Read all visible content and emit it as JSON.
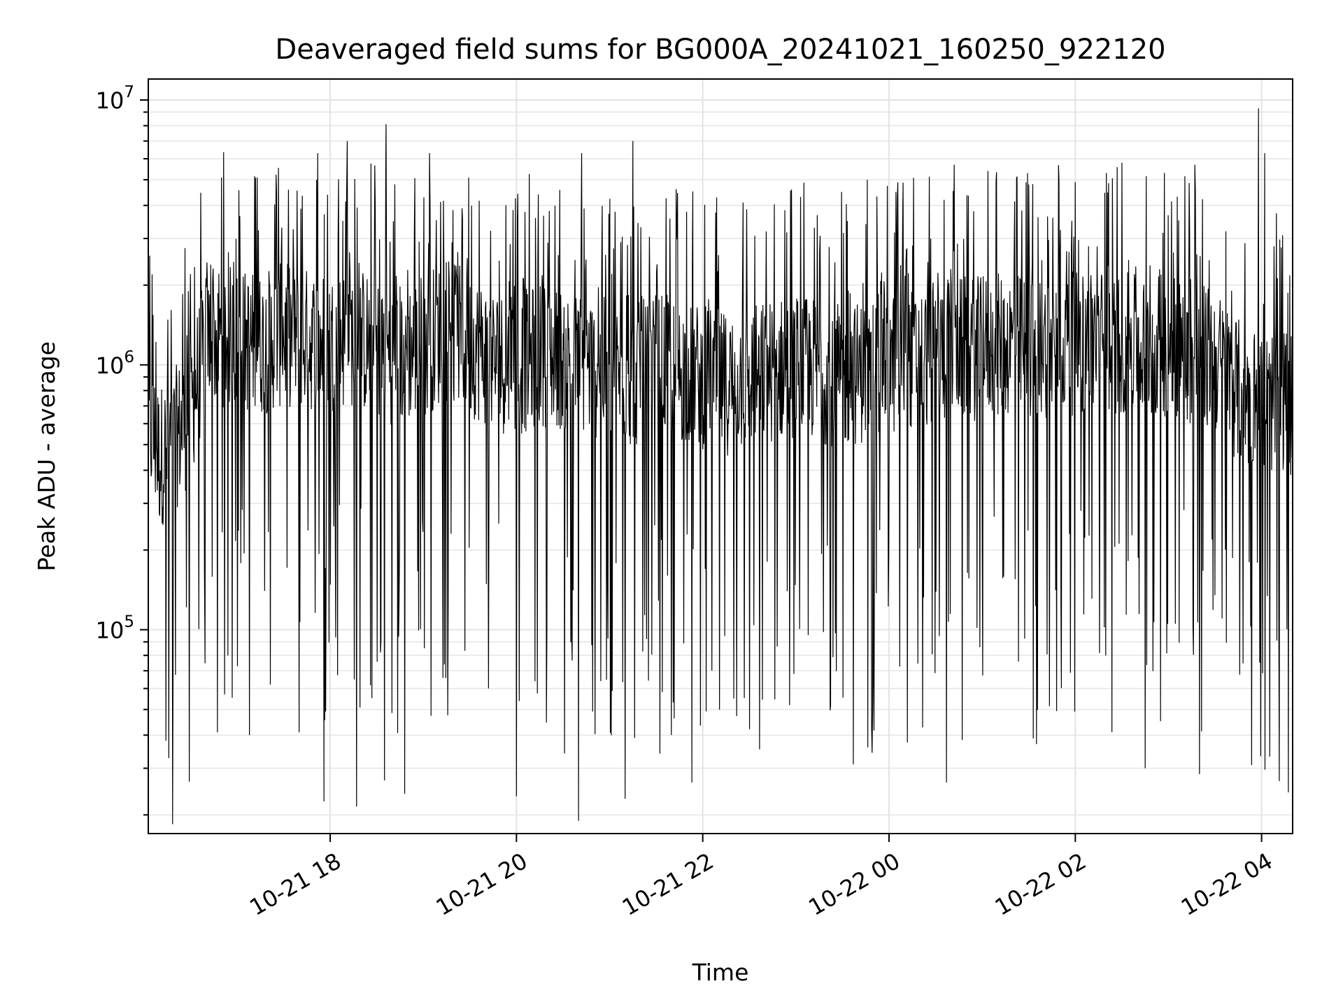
{
  "chart_data": {
    "type": "line",
    "title": "Deaveraged field sums for BG000A_20241021_160250_922120",
    "xlabel": "Time",
    "ylabel": "Peak ADU - average",
    "yscale": "log",
    "ylim": [
      17000,
      12000000
    ],
    "xlim": [
      "2024-10-21 16:02:50",
      "2024-10-22 04:20:00"
    ],
    "x_ticks": [
      "10-21 18",
      "10-21 20",
      "10-21 22",
      "10-22 00",
      "10-22 02",
      "10-22 04"
    ],
    "y_ticks": [
      {
        "base": "10",
        "exp": "5",
        "value": 100000
      },
      {
        "base": "10",
        "exp": "6",
        "value": 1000000
      },
      {
        "base": "10",
        "exp": "7",
        "value": 10000000
      }
    ],
    "grid": true,
    "line_color": "#000000",
    "series": [
      {
        "points": [
          [
            "2024-10-21 16:03",
            600000
          ],
          [
            "2024-10-21 16:10",
            450000
          ],
          [
            "2024-10-21 16:20",
            520000
          ],
          [
            "2024-10-21 16:30",
            680000
          ],
          [
            "2024-10-21 16:40",
            1200000
          ],
          [
            "2024-10-21 16:50",
            1300000
          ],
          [
            "2024-10-21 17:00",
            1250000
          ],
          [
            "2024-10-21 17:15",
            1200000
          ],
          [
            "2024-10-21 17:30",
            1300000
          ],
          [
            "2024-10-21 17:45",
            1250000
          ],
          [
            "2024-10-21 18:00",
            1200000
          ],
          [
            "2024-10-21 18:15",
            1300000
          ],
          [
            "2024-10-21 18:30",
            1150000
          ],
          [
            "2024-10-21 18:45",
            1100000
          ],
          [
            "2024-10-21 19:00",
            1200000
          ],
          [
            "2024-10-21 19:15",
            1350000
          ],
          [
            "2024-10-21 19:30",
            1200000
          ],
          [
            "2024-10-21 19:45",
            1050000
          ],
          [
            "2024-10-21 20:00",
            1000000
          ],
          [
            "2024-10-21 20:15",
            1100000
          ],
          [
            "2024-10-21 20:30",
            1050000
          ],
          [
            "2024-10-21 20:45",
            1000000
          ],
          [
            "2024-10-21 21:00",
            950000
          ],
          [
            "2024-10-21 21:15",
            900000
          ],
          [
            "2024-10-21 21:30",
            1000000
          ],
          [
            "2024-10-21 21:45",
            950000
          ],
          [
            "2024-10-21 22:00",
            900000
          ],
          [
            "2024-10-21 22:15",
            850000
          ],
          [
            "2024-10-21 22:30",
            900000
          ],
          [
            "2024-10-21 22:45",
            950000
          ],
          [
            "2024-10-21 23:00",
            1000000
          ],
          [
            "2024-10-21 23:15",
            950000
          ],
          [
            "2024-10-21 23:30",
            900000
          ],
          [
            "2024-10-21 23:45",
            950000
          ],
          [
            "2024-10-22 00:00",
            1000000
          ],
          [
            "2024-10-22 00:15",
            1050000
          ],
          [
            "2024-10-22 00:30",
            1100000
          ],
          [
            "2024-10-22 00:45",
            1150000
          ],
          [
            "2024-10-22 01:00",
            1150000
          ],
          [
            "2024-10-22 01:15",
            1200000
          ],
          [
            "2024-10-22 01:30",
            1150000
          ],
          [
            "2024-10-22 01:45",
            1200000
          ],
          [
            "2024-10-22 02:00",
            1200000
          ],
          [
            "2024-10-22 02:15",
            1250000
          ],
          [
            "2024-10-22 02:30",
            1200000
          ],
          [
            "2024-10-22 02:45",
            1150000
          ],
          [
            "2024-10-22 03:00",
            1200000
          ],
          [
            "2024-10-22 03:15",
            1100000
          ],
          [
            "2024-10-22 03:30",
            1050000
          ],
          [
            "2024-10-22 03:45",
            800000
          ],
          [
            "2024-10-22 04:00",
            700000
          ],
          [
            "2024-10-22 04:10",
            750000
          ],
          [
            "2024-10-22 04:19",
            720000
          ]
        ],
        "peaks_high": [
          [
            "2024-10-21 16:30",
            2200000
          ],
          [
            "2024-10-21 16:50",
            5100000
          ],
          [
            "2024-10-21 17:13",
            5100000
          ],
          [
            "2024-10-21 17:40",
            5500000
          ],
          [
            "2024-10-21 17:52",
            6300000
          ],
          [
            "2024-10-21 18:11",
            7000000
          ],
          [
            "2024-10-21 18:36",
            8100000
          ],
          [
            "2024-10-21 19:04",
            6300000
          ],
          [
            "2024-10-21 20:00",
            5100000
          ],
          [
            "2024-10-21 20:42",
            6300000
          ],
          [
            "2024-10-21 21:15",
            7000000
          ],
          [
            "2024-10-21 22:26",
            4100000
          ],
          [
            "2024-10-21 23:46",
            5000000
          ],
          [
            "2024-10-22 00:42",
            5700000
          ],
          [
            "2024-10-22 01:30",
            4800000
          ],
          [
            "2024-10-22 02:20",
            5300000
          ],
          [
            "2024-10-22 03:17",
            5700000
          ],
          [
            "2024-10-22 03:58",
            9300000
          ],
          [
            "2024-10-22 04:02",
            6300000
          ]
        ],
        "dips_low": [
          [
            "2024-10-21 16:39",
            170000
          ],
          [
            "2024-10-21 16:52",
            57000
          ],
          [
            "2024-10-21 17:08",
            40000
          ],
          [
            "2024-10-21 17:40",
            41000
          ],
          [
            "2024-10-21 17:56",
            22500
          ],
          [
            "2024-10-21 18:17",
            21500
          ],
          [
            "2024-10-21 18:35",
            27000
          ],
          [
            "2024-10-21 18:48",
            24000
          ],
          [
            "2024-10-21 19:42",
            60000
          ],
          [
            "2024-10-21 20:00",
            23500
          ],
          [
            "2024-10-21 20:40",
            19000
          ],
          [
            "2024-10-21 21:10",
            23000
          ],
          [
            "2024-10-21 21:53",
            26500
          ],
          [
            "2024-10-21 22:20",
            55000
          ],
          [
            "2024-10-21 23:37",
            31000
          ],
          [
            "2024-10-22 00:37",
            26500
          ],
          [
            "2024-10-22 01:35",
            37000
          ],
          [
            "2024-10-22 02:45",
            30000
          ],
          [
            "2024-10-22 03:20",
            28500
          ],
          [
            "2024-10-22 03:52",
            180000
          ]
        ]
      }
    ]
  }
}
